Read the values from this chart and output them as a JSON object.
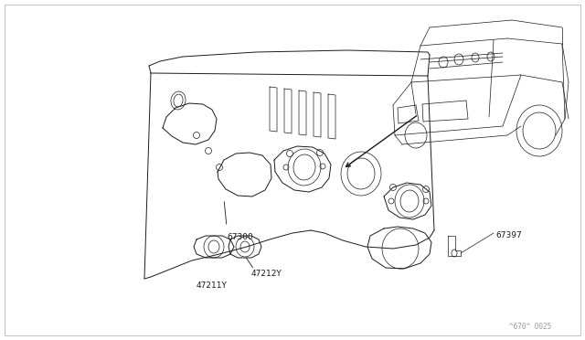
{
  "bg_color": "#ffffff",
  "line_color": "#1a1a1a",
  "fig_width": 6.4,
  "fig_height": 3.72,
  "dpi": 100,
  "watermark": "^670^ 0025",
  "label_fontsize": 6.5
}
